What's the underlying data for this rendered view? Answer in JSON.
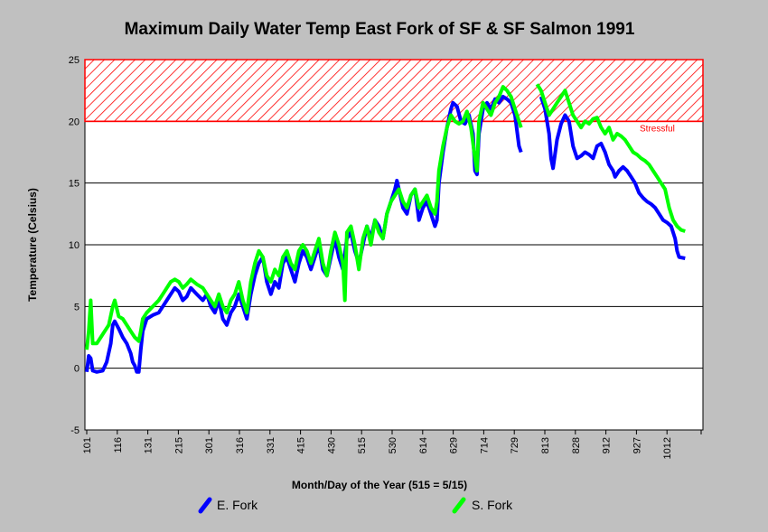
{
  "chart_data": {
    "type": "line",
    "title": "Maximum Daily Water Temp East Fork of SF & SF Salmon 1991",
    "xlabel": "Month/Day of the Year (515 = 5/15)",
    "ylabel": "Temperature (Celsius)",
    "ylim": [
      -5,
      25
    ],
    "yticks": [
      "-5",
      "0",
      "5",
      "10",
      "15",
      "20",
      "25"
    ],
    "xticks": [
      "101",
      "116",
      "131",
      "215",
      "301",
      "316",
      "331",
      "415",
      "430",
      "515",
      "530",
      "614",
      "629",
      "714",
      "729",
      "813",
      "828",
      "912",
      "927",
      "1012"
    ],
    "grid": "horizontal",
    "legend_position": "bottom",
    "threshold": {
      "label": "Stressful",
      "y_min": 20,
      "y_max": 25,
      "color": "#ff0000"
    },
    "x_range_days": [
      0,
      307
    ],
    "series": [
      {
        "name": "E. Fork",
        "color": "#0000ff",
        "points": [
          [
            0,
            -0.3
          ],
          [
            1,
            1.0
          ],
          [
            2,
            0.8
          ],
          [
            3,
            -0.2
          ],
          [
            5,
            -0.3
          ],
          [
            8,
            -0.2
          ],
          [
            10,
            0.5
          ],
          [
            12,
            2.0
          ],
          [
            13,
            3.5
          ],
          [
            14,
            3.8
          ],
          [
            16,
            3.2
          ],
          [
            18,
            2.5
          ],
          [
            20,
            2.0
          ],
          [
            22,
            1.2
          ],
          [
            23,
            0.5
          ],
          [
            24,
            0.2
          ],
          [
            25,
            -0.3
          ],
          [
            26,
            -0.3
          ],
          [
            27,
            1.5
          ],
          [
            28,
            3.0
          ],
          [
            30,
            4.0
          ],
          [
            33,
            4.3
          ],
          [
            36,
            4.5
          ],
          [
            38,
            5.0
          ],
          [
            40,
            5.5
          ],
          [
            42,
            6.0
          ],
          [
            44,
            6.5
          ],
          [
            46,
            6.2
          ],
          [
            48,
            5.5
          ],
          [
            50,
            5.8
          ],
          [
            52,
            6.5
          ],
          [
            55,
            6.0
          ],
          [
            58,
            5.5
          ],
          [
            60,
            6.0
          ],
          [
            62,
            5.0
          ],
          [
            64,
            4.5
          ],
          [
            66,
            5.5
          ],
          [
            68,
            4.0
          ],
          [
            70,
            3.5
          ],
          [
            72,
            4.5
          ],
          [
            74,
            5.0
          ],
          [
            76,
            6.0
          ],
          [
            78,
            5.0
          ],
          [
            80,
            4.0
          ],
          [
            82,
            6.0
          ],
          [
            84,
            7.5
          ],
          [
            86,
            8.5
          ],
          [
            88,
            9.0
          ],
          [
            90,
            7.0
          ],
          [
            92,
            6.0
          ],
          [
            94,
            7.0
          ],
          [
            96,
            6.5
          ],
          [
            98,
            8.5
          ],
          [
            100,
            9.0
          ],
          [
            102,
            8.0
          ],
          [
            104,
            7.0
          ],
          [
            106,
            8.5
          ],
          [
            108,
            9.5
          ],
          [
            110,
            9.0
          ],
          [
            112,
            8.0
          ],
          [
            114,
            9.0
          ],
          [
            116,
            10.0
          ],
          [
            118,
            8.0
          ],
          [
            120,
            7.5
          ],
          [
            122,
            9.0
          ],
          [
            124,
            10.5
          ],
          [
            126,
            9.0
          ],
          [
            128,
            8.0
          ],
          [
            130,
            10.5
          ],
          [
            132,
            11.0
          ],
          [
            134,
            9.5
          ],
          [
            136,
            8.5
          ],
          [
            138,
            10.0
          ],
          [
            140,
            11.5
          ],
          [
            142,
            10.5
          ],
          [
            144,
            12.0
          ],
          [
            146,
            11.5
          ],
          [
            148,
            10.5
          ],
          [
            150,
            12.5
          ],
          [
            152,
            13.5
          ],
          [
            154,
            14.5
          ],
          [
            155,
            15.2
          ],
          [
            156,
            14.5
          ],
          [
            158,
            13.0
          ],
          [
            160,
            12.5
          ],
          [
            162,
            14.0
          ],
          [
            164,
            14.5
          ],
          [
            166,
            12.0
          ],
          [
            168,
            13.0
          ],
          [
            170,
            13.5
          ],
          [
            172,
            12.5
          ],
          [
            174,
            11.5
          ],
          [
            175,
            12.0
          ],
          [
            176,
            15.0
          ],
          [
            178,
            17.5
          ],
          [
            180,
            19.5
          ],
          [
            182,
            21.0
          ],
          [
            183,
            21.5
          ],
          [
            185,
            21.2
          ],
          [
            187,
            20.0
          ],
          [
            189,
            19.8
          ],
          [
            191,
            20.5
          ],
          [
            193,
            19.0
          ],
          [
            194,
            16.0
          ],
          [
            195,
            15.7
          ],
          [
            196,
            19.0
          ],
          [
            198,
            21.0
          ],
          [
            200,
            21.5
          ],
          [
            202,
            21.0
          ],
          [
            204,
            21.8
          ],
          [
            206,
            21.5
          ],
          [
            208,
            22.0
          ],
          [
            210,
            21.8
          ],
          [
            212,
            21.5
          ],
          [
            214,
            20.5
          ],
          [
            216,
            18.0
          ],
          [
            217,
            17.5
          ],
          [
            227,
            22.0
          ],
          [
            229,
            21.0
          ],
          [
            231,
            19.0
          ],
          [
            232,
            17.0
          ],
          [
            233,
            16.2
          ],
          [
            235,
            18.5
          ],
          [
            237,
            19.8
          ],
          [
            239,
            20.5
          ],
          [
            241,
            20.0
          ],
          [
            243,
            18.0
          ],
          [
            245,
            17.0
          ],
          [
            247,
            17.2
          ],
          [
            249,
            17.5
          ],
          [
            251,
            17.3
          ],
          [
            253,
            17.0
          ],
          [
            255,
            18.0
          ],
          [
            257,
            18.2
          ],
          [
            259,
            17.5
          ],
          [
            261,
            16.5
          ],
          [
            263,
            16.0
          ],
          [
            264,
            15.5
          ],
          [
            266,
            16.0
          ],
          [
            268,
            16.3
          ],
          [
            270,
            16.0
          ],
          [
            272,
            15.5
          ],
          [
            274,
            15.0
          ],
          [
            276,
            14.2
          ],
          [
            278,
            13.8
          ],
          [
            280,
            13.5
          ],
          [
            282,
            13.3
          ],
          [
            284,
            13.0
          ],
          [
            286,
            12.5
          ],
          [
            288,
            12.0
          ],
          [
            290,
            11.8
          ],
          [
            292,
            11.5
          ],
          [
            294,
            10.5
          ],
          [
            295,
            9.5
          ],
          [
            296,
            9.0
          ],
          [
            299,
            8.9
          ]
        ]
      },
      {
        "name": "S. Fork",
        "color": "#00ff00",
        "points": [
          [
            0,
            1.5
          ],
          [
            1,
            3.0
          ],
          [
            2,
            5.5
          ],
          [
            3,
            2.0
          ],
          [
            5,
            2.0
          ],
          [
            7,
            2.5
          ],
          [
            9,
            3.0
          ],
          [
            11,
            3.5
          ],
          [
            13,
            5.0
          ],
          [
            14,
            5.5
          ],
          [
            16,
            4.2
          ],
          [
            18,
            4.0
          ],
          [
            20,
            3.5
          ],
          [
            22,
            3.0
          ],
          [
            24,
            2.5
          ],
          [
            26,
            2.2
          ],
          [
            27,
            3.0
          ],
          [
            28,
            4.0
          ],
          [
            30,
            4.5
          ],
          [
            33,
            5.0
          ],
          [
            36,
            5.5
          ],
          [
            38,
            6.0
          ],
          [
            40,
            6.5
          ],
          [
            42,
            7.0
          ],
          [
            44,
            7.2
          ],
          [
            46,
            7.0
          ],
          [
            48,
            6.5
          ],
          [
            50,
            6.8
          ],
          [
            52,
            7.2
          ],
          [
            55,
            6.8
          ],
          [
            58,
            6.5
          ],
          [
            60,
            6.0
          ],
          [
            62,
            5.5
          ],
          [
            64,
            5.0
          ],
          [
            66,
            6.0
          ],
          [
            68,
            5.0
          ],
          [
            70,
            4.5
          ],
          [
            72,
            5.5
          ],
          [
            74,
            6.0
          ],
          [
            76,
            7.0
          ],
          [
            78,
            5.5
          ],
          [
            80,
            4.5
          ],
          [
            82,
            7.0
          ],
          [
            84,
            8.5
          ],
          [
            86,
            9.5
          ],
          [
            88,
            9.0
          ],
          [
            90,
            7.5
          ],
          [
            92,
            7.0
          ],
          [
            94,
            8.0
          ],
          [
            96,
            7.5
          ],
          [
            98,
            9.0
          ],
          [
            100,
            9.5
          ],
          [
            102,
            8.5
          ],
          [
            104,
            8.0
          ],
          [
            106,
            9.5
          ],
          [
            108,
            10.0
          ],
          [
            110,
            9.5
          ],
          [
            112,
            8.5
          ],
          [
            114,
            9.5
          ],
          [
            116,
            10.5
          ],
          [
            118,
            8.5
          ],
          [
            120,
            7.5
          ],
          [
            122,
            9.5
          ],
          [
            124,
            11.0
          ],
          [
            126,
            10.0
          ],
          [
            128,
            8.5
          ],
          [
            129,
            5.5
          ],
          [
            130,
            11.0
          ],
          [
            132,
            11.5
          ],
          [
            134,
            10.0
          ],
          [
            136,
            8.0
          ],
          [
            138,
            10.5
          ],
          [
            140,
            11.5
          ],
          [
            142,
            10.0
          ],
          [
            144,
            12.0
          ],
          [
            146,
            11.0
          ],
          [
            148,
            10.5
          ],
          [
            150,
            12.5
          ],
          [
            152,
            13.5
          ],
          [
            154,
            14.0
          ],
          [
            156,
            14.5
          ],
          [
            158,
            13.5
          ],
          [
            160,
            13.0
          ],
          [
            162,
            14.0
          ],
          [
            164,
            14.5
          ],
          [
            166,
            13.0
          ],
          [
            168,
            13.5
          ],
          [
            170,
            14.0
          ],
          [
            172,
            13.0
          ],
          [
            174,
            12.5
          ],
          [
            175,
            13.5
          ],
          [
            176,
            16.0
          ],
          [
            178,
            18.0
          ],
          [
            180,
            19.5
          ],
          [
            182,
            20.5
          ],
          [
            184,
            20.0
          ],
          [
            186,
            19.8
          ],
          [
            188,
            20.0
          ],
          [
            190,
            20.8
          ],
          [
            192,
            19.5
          ],
          [
            194,
            17.0
          ],
          [
            195,
            16.0
          ],
          [
            196,
            20.0
          ],
          [
            198,
            21.5
          ],
          [
            200,
            21.0
          ],
          [
            202,
            20.5
          ],
          [
            204,
            21.5
          ],
          [
            206,
            22.0
          ],
          [
            208,
            22.8
          ],
          [
            210,
            22.5
          ],
          [
            212,
            22.0
          ],
          [
            214,
            21.0
          ],
          [
            216,
            20.0
          ],
          [
            217,
            19.5
          ],
          [
            225,
            23.0
          ],
          [
            227,
            22.5
          ],
          [
            229,
            21.5
          ],
          [
            231,
            20.5
          ],
          [
            233,
            21.0
          ],
          [
            235,
            21.5
          ],
          [
            237,
            22.0
          ],
          [
            239,
            22.5
          ],
          [
            241,
            21.5
          ],
          [
            243,
            20.5
          ],
          [
            245,
            20.0
          ],
          [
            247,
            19.5
          ],
          [
            249,
            20.0
          ],
          [
            251,
            19.8
          ],
          [
            253,
            20.2
          ],
          [
            255,
            20.3
          ],
          [
            257,
            19.5
          ],
          [
            259,
            19.0
          ],
          [
            261,
            19.5
          ],
          [
            263,
            18.5
          ],
          [
            265,
            19.0
          ],
          [
            267,
            18.8
          ],
          [
            269,
            18.5
          ],
          [
            271,
            18.0
          ],
          [
            273,
            17.5
          ],
          [
            275,
            17.3
          ],
          [
            277,
            17.0
          ],
          [
            279,
            16.8
          ],
          [
            281,
            16.5
          ],
          [
            283,
            16.0
          ],
          [
            285,
            15.5
          ],
          [
            287,
            15.0
          ],
          [
            289,
            14.5
          ],
          [
            291,
            13.0
          ],
          [
            293,
            12.0
          ],
          [
            295,
            11.5
          ],
          [
            297,
            11.2
          ],
          [
            299,
            11.1
          ]
        ]
      }
    ]
  }
}
